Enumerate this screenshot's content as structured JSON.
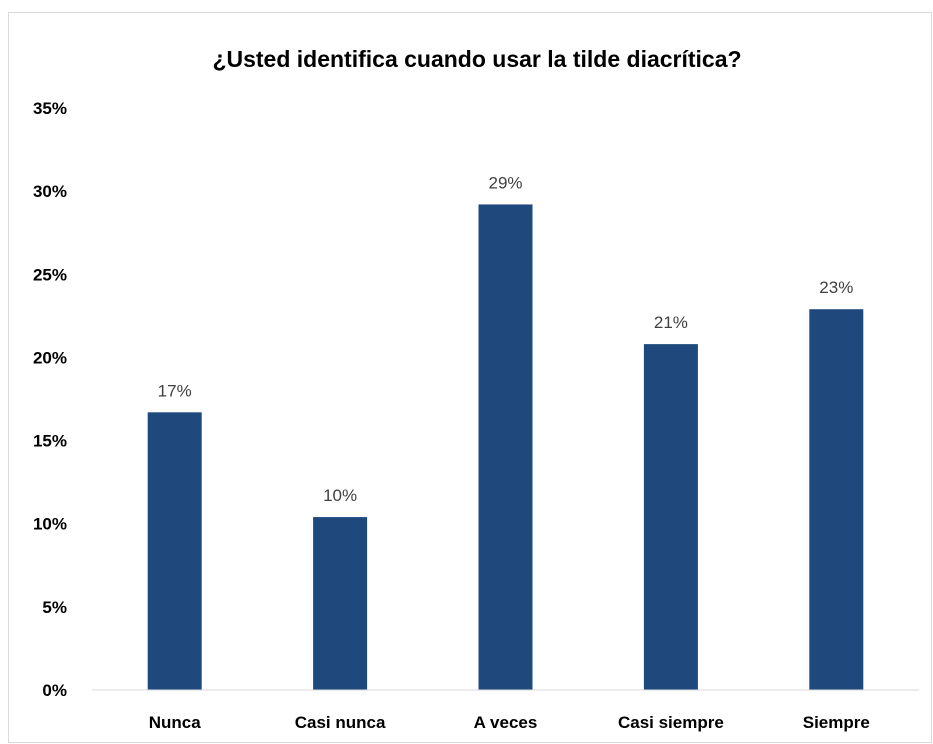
{
  "chart_data": {
    "type": "bar",
    "title": "¿Usted identifica cuando usar la tilde diacrítica?",
    "xlabel": "",
    "ylabel": "",
    "categories": [
      "Nunca",
      "Casi nunca",
      "A veces",
      "Casi siempre",
      "Siempre"
    ],
    "values": [
      0.167,
      0.104,
      0.292,
      0.208,
      0.229
    ],
    "data_labels": [
      "17%",
      "10%",
      "29%",
      "21%",
      "23%"
    ],
    "ylim": [
      0,
      0.35
    ],
    "yticks": [
      0,
      0.05,
      0.1,
      0.15,
      0.2,
      0.25,
      0.3,
      0.35
    ],
    "ytick_labels": [
      "0%",
      "5%",
      "10%",
      "15%",
      "20%",
      "25%",
      "30%",
      "35%"
    ],
    "grid": false,
    "legend": "none",
    "bar_color": "#1f497d",
    "axis_color": "#d9d9d9"
  }
}
